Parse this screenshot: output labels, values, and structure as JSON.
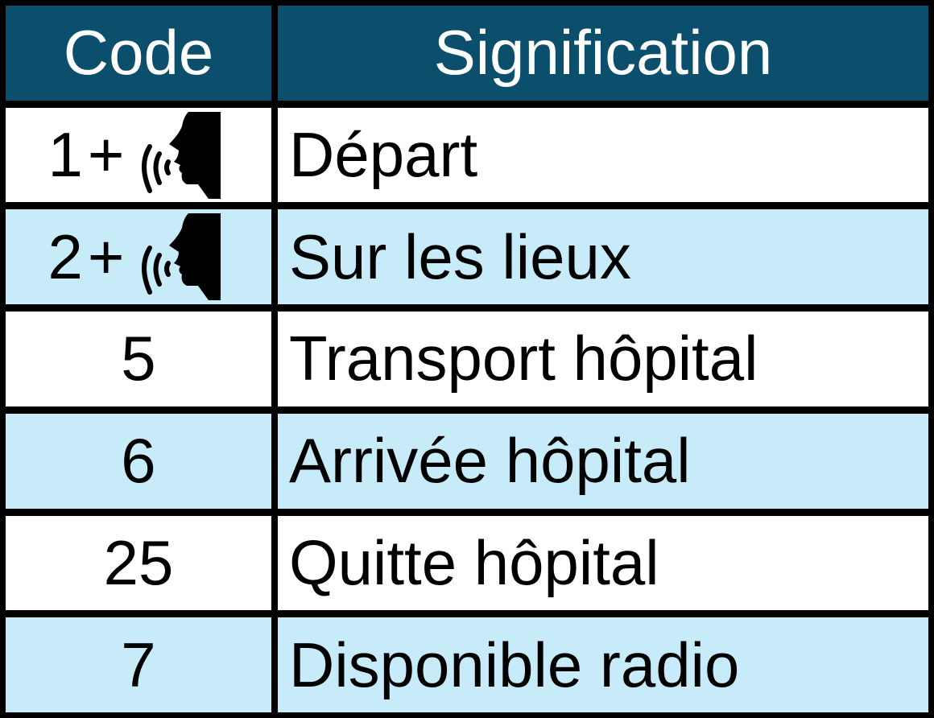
{
  "header": {
    "code": "Code",
    "meaning": "Signification"
  },
  "colors": {
    "header_bg": "#0b4f6c",
    "row_alt": "#c8ebfa",
    "row": "#ffffff",
    "border": "#000000"
  },
  "rows": [
    {
      "code": "1",
      "plus": "+",
      "icon": "speaking-head-icon",
      "meaning": "Départ"
    },
    {
      "code": "2",
      "plus": "+",
      "icon": "speaking-head-icon",
      "meaning": "Sur les lieux"
    },
    {
      "code": "5",
      "meaning": "Transport hôpital"
    },
    {
      "code": "6",
      "meaning": "Arrivée hôpital"
    },
    {
      "code": "25",
      "meaning": "Quitte hôpital"
    },
    {
      "code": "7",
      "meaning": "Disponible radio"
    }
  ]
}
